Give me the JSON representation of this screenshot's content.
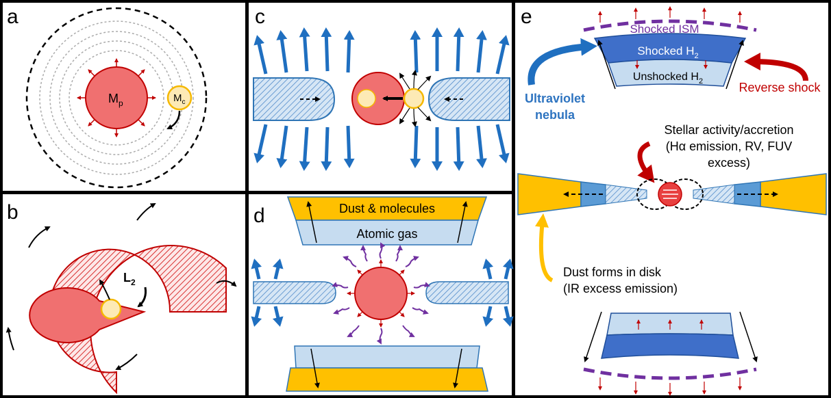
{
  "panels": {
    "a": {
      "label": "a",
      "primary_label": "M",
      "primary_sub": "p",
      "companion_label": "M",
      "companion_sub": "c"
    },
    "b": {
      "label": "b",
      "lagrange_label": "L",
      "lagrange_sub": "2"
    },
    "c": {
      "label": "c"
    },
    "d": {
      "label": "d",
      "outer_layer": "Dust & molecules",
      "inner_layer": "Atomic gas"
    },
    "e": {
      "label": "e",
      "shocked_ism": "Shocked ISM",
      "shocked_h2": "Shocked H",
      "shocked_h2_sub": "2",
      "unshocked_h2": "Unshocked H",
      "unshocked_h2_sub": "2",
      "uv_nebula_line1": "Ultraviolet",
      "uv_nebula_line2": "nebula",
      "reverse_shock": "Reverse shock",
      "stellar_line1": "Stellar activity/accretion",
      "stellar_line2": "(Hα emission, RV, FUV",
      "stellar_line3": "excess)",
      "dust_line1": "Dust forms in disk",
      "dust_line2": "(IR excess emission)"
    }
  },
  "colors": {
    "star_fill": "#f07070",
    "star_stroke": "#c00000",
    "companion_fill": "#fdeab5",
    "companion_stroke": "#f5b800",
    "outflow_blue": "#1f6fc0",
    "light_blue": "#bdd7ee",
    "mid_blue": "#5b9bd5",
    "dark_blue": "#2e5fbf",
    "gold": "#ffc000",
    "purple": "#7030a0",
    "red_arrow": "#c00000"
  }
}
